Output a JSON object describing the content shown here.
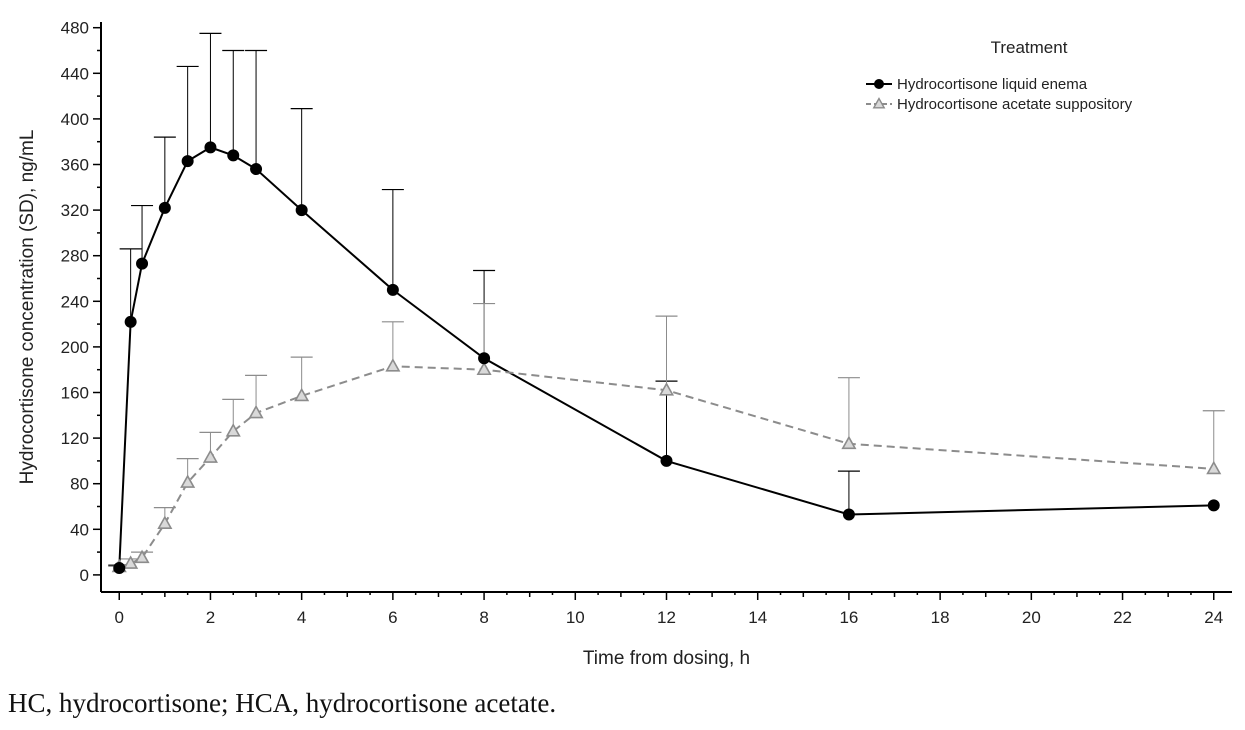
{
  "chart_data": {
    "type": "line",
    "xlabel": "Time from dosing, h",
    "ylabel": "Hydrocortisone concentration (SD), ng/mL",
    "xlim": [
      -0.4,
      24.4
    ],
    "ylim": [
      -15,
      485
    ],
    "xticks": [
      0,
      2,
      4,
      6,
      8,
      10,
      12,
      14,
      16,
      18,
      20,
      22,
      24
    ],
    "yticks": [
      0,
      40,
      80,
      120,
      160,
      200,
      240,
      280,
      320,
      360,
      400,
      440,
      480
    ],
    "legend": {
      "title": "Treatment",
      "position": "top-right"
    },
    "series": [
      {
        "name": "Hydrocortisone liquid enema",
        "color": "#000000",
        "line_style": "solid",
        "marker": "filled-circle",
        "x": [
          0,
          0.25,
          0.5,
          1,
          1.5,
          2,
          2.5,
          3,
          4,
          6,
          8,
          12,
          16,
          24
        ],
        "y": [
          6,
          222,
          273,
          322,
          363,
          375,
          368,
          356,
          320,
          250,
          190,
          100,
          53,
          61
        ],
        "sd_upper": [
          8,
          286,
          324,
          384,
          446,
          475,
          460,
          460,
          409,
          338,
          267,
          170,
          91,
          61
        ]
      },
      {
        "name": "Hydrocortisone acetate suppository",
        "color": "#8c8c8c",
        "line_style": "dashed",
        "marker": "open-triangle",
        "x": [
          0,
          0.25,
          0.5,
          1,
          1.5,
          2,
          2.5,
          3,
          4,
          6,
          8,
          12,
          16,
          24
        ],
        "y": [
          7,
          10,
          15,
          45,
          81,
          103,
          126,
          142,
          157,
          183,
          180,
          162,
          115,
          93
        ],
        "sd_upper": [
          9,
          14,
          20,
          59,
          102,
          125,
          154,
          175,
          191,
          222,
          238,
          227,
          173,
          144
        ]
      }
    ]
  },
  "caption": "HC, hydrocortisone; HCA, hydrocortisone acetate."
}
